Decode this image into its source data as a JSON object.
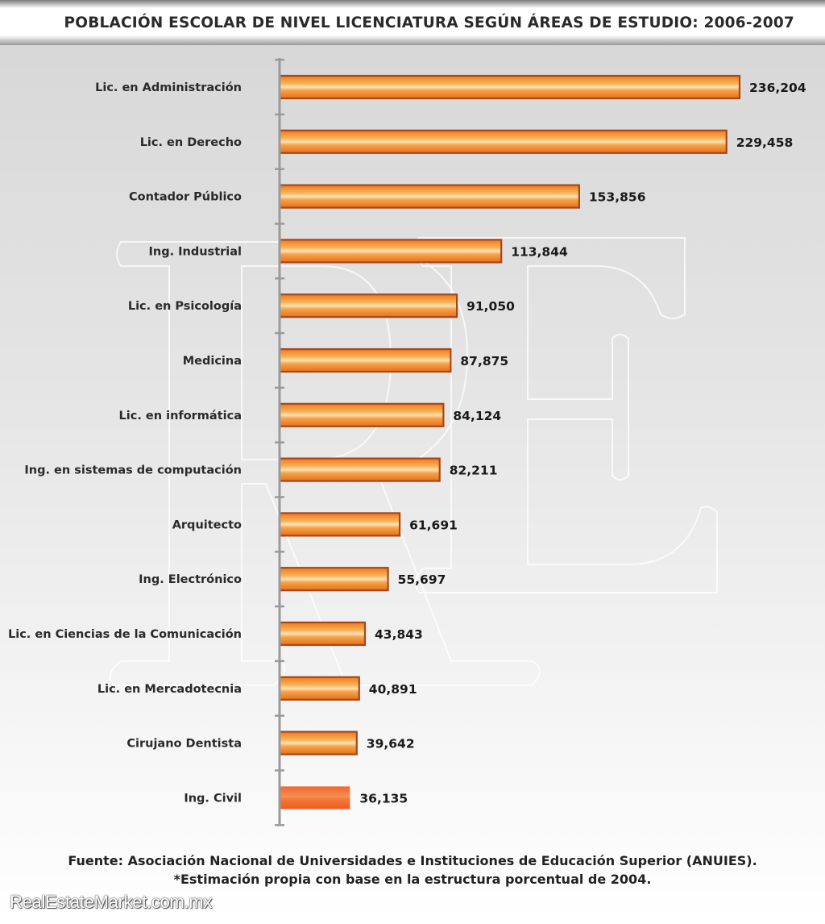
{
  "title": "POBLACIÓN ESCOLAR DE NIVEL LICENCIATURA SEGÚN ÁREAS DE ESTUDIO: 2006-2007",
  "chart_data": {
    "type": "bar",
    "orientation": "horizontal",
    "categories": [
      "Lic. en Administración",
      "Lic. en Derecho",
      "Contador Público",
      "Ing. Industrial",
      "Lic. en Psicología",
      "Medicina",
      "Lic. en informática",
      "Ing. en sistemas de computación",
      "Arquitecto",
      "Ing. Electrónico",
      "Lic. en Ciencias de la Comunicación",
      "Lic. en Mercadotecnia",
      "Cirujano Dentista",
      "Ing. Civil"
    ],
    "values": [
      236204,
      229458,
      153856,
      113844,
      91050,
      87875,
      84124,
      82211,
      61691,
      55697,
      43843,
      40891,
      39642,
      36135
    ],
    "value_labels": [
      "236,204",
      "229,458",
      "153,856",
      "113,844",
      "91,050",
      "87,875",
      "84,124",
      "82,211",
      "61,691",
      "55,697",
      "43,843",
      "40,891",
      "39,642",
      "36,135"
    ],
    "xlim": [
      0,
      236204
    ],
    "grid": false,
    "legend": "none",
    "bar_color": "#f08a24",
    "bar_border_color": "#a8461a",
    "highlight_color": "#f2662a"
  },
  "footer": {
    "source": "Fuente: Asociación Nacional de Universidades e Instituciones de Educación Superior (ANUIES).",
    "note": "*Estimación propia con base en la estructura porcentual de 2004."
  },
  "brand": "RealEstateMarket.com.mx",
  "watermark_icon": "re-monogram-icon"
}
